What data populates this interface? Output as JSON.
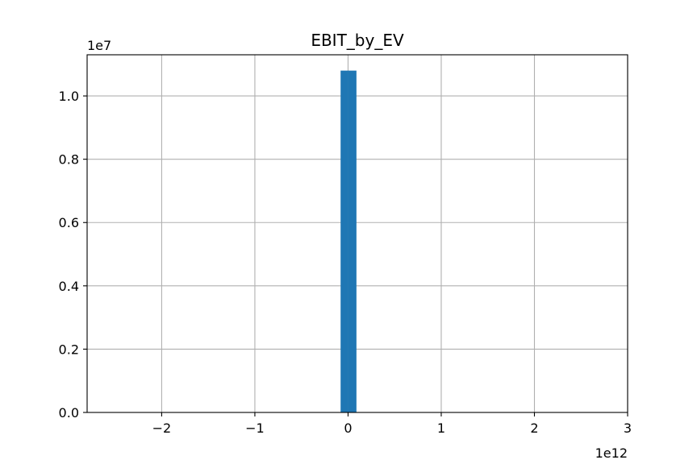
{
  "chart_data": {
    "type": "bar",
    "title": "EBIT_by_EV",
    "xlabel": "",
    "ylabel": "",
    "x_offset_label": "1e12",
    "y_offset_label": "1e7",
    "x_scale": 1000000000000.0,
    "y_scale": 10000000.0,
    "xlim": [
      -2.8,
      3.0
    ],
    "ylim": [
      0,
      1.13
    ],
    "xticks": [
      {
        "value": -2,
        "label": "−2"
      },
      {
        "value": -1,
        "label": "−1"
      },
      {
        "value": 0,
        "label": "0"
      },
      {
        "value": 1,
        "label": "1"
      },
      {
        "value": 2,
        "label": "2"
      },
      {
        "value": 3,
        "label": "3"
      }
    ],
    "yticks": [
      {
        "value": 0.0,
        "label": "0.0"
      },
      {
        "value": 0.2,
        "label": "0.2"
      },
      {
        "value": 0.4,
        "label": "0.4"
      },
      {
        "value": 0.6,
        "label": "0.6"
      },
      {
        "value": 0.8,
        "label": "0.8"
      },
      {
        "value": 1.0,
        "label": "1.0"
      }
    ],
    "bars": [
      {
        "x0": -0.08,
        "x1": 0.0,
        "value": 1.08
      },
      {
        "x0": 0.0,
        "x1": 0.09,
        "value": 1.08
      }
    ],
    "grid": true,
    "bar_color": "#1f77b4"
  }
}
